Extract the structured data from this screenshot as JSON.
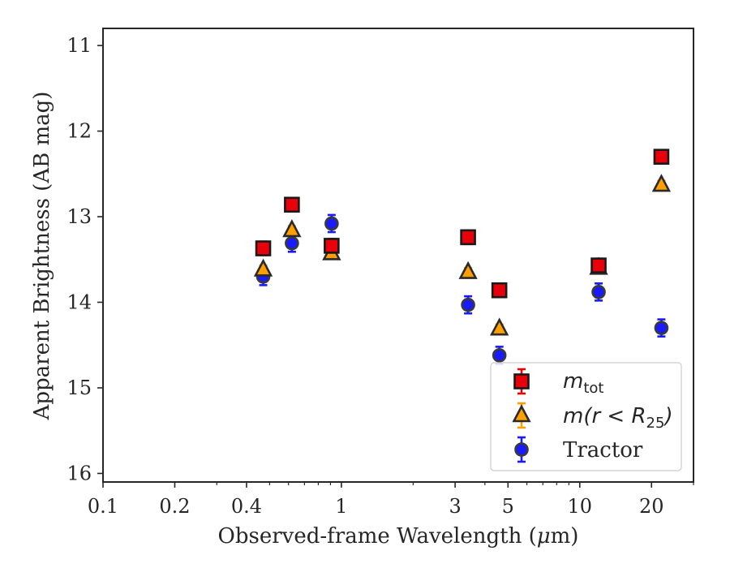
{
  "chart_data": {
    "type": "scatter",
    "xlabel": "Observed-frame Wavelength (μm)",
    "xlabel_parts": {
      "before": "Observed-frame Wavelength (",
      "mu": "μ",
      "after": "m)"
    },
    "ylabel": "Apparent Brightness (AB mag)",
    "x_scale": "log",
    "xlim": [
      0.1,
      30
    ],
    "ylim": [
      16.1,
      10.8
    ],
    "y_inverted": true,
    "x_ticks": [
      {
        "value": 0.1,
        "label": "0.1"
      },
      {
        "value": 0.2,
        "label": "0.2"
      },
      {
        "value": 0.4,
        "label": "0.4"
      },
      {
        "value": 1,
        "label": "1"
      },
      {
        "value": 3,
        "label": "3"
      },
      {
        "value": 5,
        "label": "5"
      },
      {
        "value": 10,
        "label": "10"
      },
      {
        "value": 20,
        "label": "20"
      }
    ],
    "x_minor_ticks": [
      0.3,
      0.5,
      0.6,
      0.7,
      0.8,
      0.9,
      2,
      4,
      6,
      7,
      8,
      9,
      30
    ],
    "y_ticks": [
      {
        "value": 11,
        "label": "11"
      },
      {
        "value": 12,
        "label": "12"
      },
      {
        "value": 13,
        "label": "13"
      },
      {
        "value": 14,
        "label": "14"
      },
      {
        "value": 15,
        "label": "15"
      },
      {
        "value": 16,
        "label": "16"
      }
    ],
    "grid": false,
    "legend_position": "lower-right",
    "series": [
      {
        "key": "mtot",
        "legend_math": "m",
        "legend_sub": "tot",
        "marker": "square",
        "color": "#e8000b",
        "edge_color": "#1a1a1a",
        "points": [
          {
            "x": 0.47,
            "y": 13.37,
            "err": 0.08
          },
          {
            "x": 0.62,
            "y": 12.86,
            "err": 0.08
          },
          {
            "x": 0.91,
            "y": 13.34,
            "err": 0.08
          },
          {
            "x": 3.4,
            "y": 13.24,
            "err": 0.08
          },
          {
            "x": 4.6,
            "y": 13.86,
            "err": 0.08
          },
          {
            "x": 12.0,
            "y": 13.57,
            "err": 0.08
          },
          {
            "x": 22.0,
            "y": 12.3,
            "err": 0.08
          }
        ]
      },
      {
        "key": "mr25",
        "legend_math": "m(r < R",
        "legend_sub": "25",
        "legend_math_end": ")",
        "marker": "triangle",
        "color": "#ff9f00",
        "edge_color": "#2a2a2a",
        "points": [
          {
            "x": 0.47,
            "y": 13.62,
            "err": 0.05
          },
          {
            "x": 0.62,
            "y": 13.16,
            "err": 0.05
          },
          {
            "x": 0.91,
            "y": 13.43,
            "err": 0.05
          },
          {
            "x": 3.4,
            "y": 13.65,
            "err": 0.05
          },
          {
            "x": 4.6,
            "y": 14.31,
            "err": 0.05
          },
          {
            "x": 12.0,
            "y": 13.6,
            "err": 0.05
          },
          {
            "x": 22.0,
            "y": 12.63,
            "err": 0.05
          }
        ]
      },
      {
        "key": "tractor",
        "legend_label": "Tractor",
        "marker": "circle",
        "color": "#1a1aff",
        "edge_color": "#3a3a3a",
        "points": [
          {
            "x": 0.47,
            "y": 13.7,
            "err": 0.1
          },
          {
            "x": 0.62,
            "y": 13.31,
            "err": 0.1
          },
          {
            "x": 0.91,
            "y": 13.08,
            "err": 0.1
          },
          {
            "x": 3.4,
            "y": 14.03,
            "err": 0.1
          },
          {
            "x": 4.6,
            "y": 14.62,
            "err": 0.1
          },
          {
            "x": 12.0,
            "y": 13.88,
            "err": 0.1
          },
          {
            "x": 22.0,
            "y": 14.3,
            "err": 0.1
          }
        ]
      }
    ]
  }
}
